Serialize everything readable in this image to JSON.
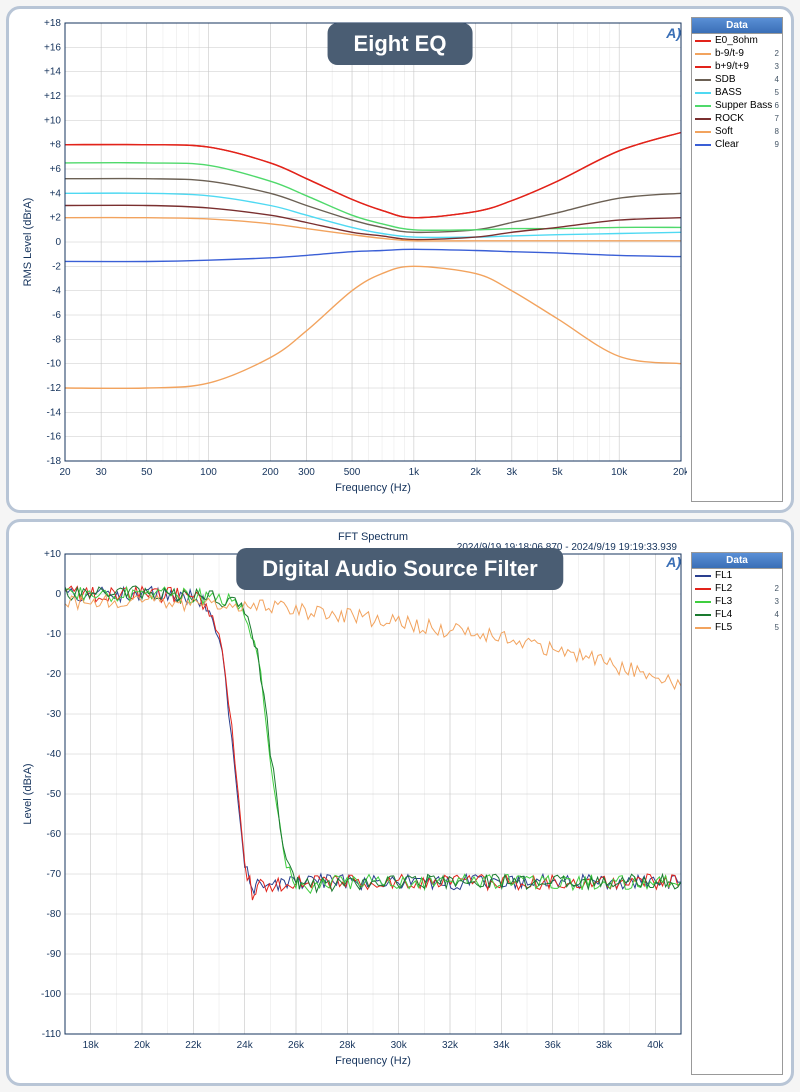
{
  "page_bg": "#f5f5f5",
  "panel_border": "#b8c5d6",
  "pill_bg": "#4a5d73",
  "pill_fg": "#ffffff",
  "grid_major": "#c8c8c8",
  "grid_minor": "#e6e6e6",
  "axis_color": "#15335c",
  "legend_header": "Data",
  "chart1": {
    "title": "Eight EQ",
    "type": "line",
    "x_axis_title": "Frequency (Hz)",
    "y_axis_title": "RMS Level (dBrA)",
    "x_scale": "log",
    "xlim": [
      20,
      20000
    ],
    "ylim": [
      -18,
      18
    ],
    "y_tick_step": 2,
    "x_ticks": [
      20,
      30,
      50,
      100,
      200,
      300,
      500,
      1000,
      2000,
      3000,
      5000,
      10000,
      20000
    ],
    "x_tick_labels": [
      "20",
      "30",
      "50",
      "100",
      "200",
      "300",
      "500",
      "1k",
      "2k",
      "3k",
      "5k",
      "10k",
      "20k"
    ],
    "background": "#ffffff",
    "series": [
      {
        "name": "E0_8ohm",
        "color": "#e2231a",
        "idx": "",
        "x": [
          20,
          50,
          100,
          200,
          300,
          500,
          700,
          1000,
          2000,
          3000,
          5000,
          10000,
          20000
        ],
        "y": [
          8,
          8,
          7.8,
          6.5,
          5.2,
          3.5,
          2.6,
          2,
          2.5,
          3.4,
          5,
          7.5,
          9
        ]
      },
      {
        "name": "b-9/t-9",
        "color": "#f2a35e",
        "idx": "2",
        "x": [
          20,
          50,
          100,
          200,
          300,
          500,
          700,
          1000,
          2000,
          3000,
          5000,
          10000,
          20000
        ],
        "y": [
          -12,
          -12,
          -11.6,
          -9.5,
          -7.3,
          -4,
          -2.6,
          -2,
          -2.6,
          -4,
          -6.3,
          -9.4,
          -10
        ]
      },
      {
        "name": "b+9/t+9",
        "color": "#e2231a",
        "idx": "3",
        "x": [
          20,
          50,
          100,
          200,
          300,
          500,
          700,
          1000,
          2000,
          3000,
          5000,
          10000,
          20000
        ],
        "y": [
          8,
          8,
          7.8,
          6.5,
          5.2,
          3.5,
          2.6,
          2,
          2.5,
          3.4,
          5,
          7.5,
          9
        ]
      },
      {
        "name": "SDB",
        "color": "#6b6054",
        "idx": "4",
        "x": [
          20,
          50,
          100,
          200,
          300,
          500,
          700,
          1000,
          2000,
          3000,
          5000,
          10000,
          20000
        ],
        "y": [
          5.2,
          5.2,
          5,
          4,
          3,
          1.8,
          1.2,
          0.8,
          1,
          1.6,
          2.4,
          3.6,
          4
        ]
      },
      {
        "name": "BASS",
        "color": "#4fd9f2",
        "idx": "5",
        "x": [
          20,
          50,
          100,
          200,
          300,
          500,
          700,
          1000,
          2000,
          3000,
          5000,
          10000,
          20000
        ],
        "y": [
          4,
          4,
          3.8,
          3,
          2.2,
          1.2,
          0.7,
          0.4,
          0.4,
          0.5,
          0.6,
          0.7,
          0.8
        ]
      },
      {
        "name": "Supper Bass",
        "color": "#4fd96b",
        "idx": "6",
        "x": [
          20,
          50,
          100,
          200,
          300,
          500,
          700,
          1000,
          2000,
          3000,
          5000,
          10000,
          20000
        ],
        "y": [
          6.5,
          6.5,
          6.3,
          5,
          3.8,
          2.2,
          1.5,
          1,
          1,
          1.1,
          1.1,
          1.2,
          1.2
        ]
      },
      {
        "name": "ROCK",
        "color": "#7a2f2f",
        "idx": "7",
        "x": [
          20,
          50,
          100,
          200,
          300,
          500,
          700,
          1000,
          2000,
          3000,
          5000,
          10000,
          20000
        ],
        "y": [
          3,
          3,
          2.8,
          2.2,
          1.6,
          0.8,
          0.5,
          0.2,
          0.4,
          0.8,
          1.2,
          1.8,
          2
        ]
      },
      {
        "name": "Soft",
        "color": "#f2a35e",
        "idx": "8",
        "x": [
          20,
          50,
          100,
          200,
          300,
          500,
          700,
          1000,
          2000,
          3000,
          5000,
          10000,
          20000
        ],
        "y": [
          2,
          2,
          1.9,
          1.5,
          1.1,
          0.6,
          0.3,
          0.1,
          0.1,
          0.1,
          0.1,
          0.1,
          0.1
        ]
      },
      {
        "name": "Clear",
        "color": "#3a5fd6",
        "idx": "9",
        "x": [
          20,
          50,
          100,
          200,
          300,
          500,
          700,
          1000,
          2000,
          3000,
          5000,
          10000,
          20000
        ],
        "y": [
          -1.6,
          -1.6,
          -1.5,
          -1.3,
          -1.1,
          -0.8,
          -0.7,
          -0.6,
          -0.7,
          -0.8,
          -0.9,
          -1.1,
          -1.2
        ]
      }
    ]
  },
  "chart2": {
    "title": "Digital Audio Source Filter",
    "subtitle": "FFT Spectrum",
    "timestamp_left": "2024/9/19 19:18:06.870 -",
    "timestamp_right": "2024/9/19 19:19:33.939",
    "type": "line",
    "x_axis_title": "Frequency (Hz)",
    "y_axis_title": "Level (dBrA)",
    "x_scale": "linear",
    "xlim": [
      17000,
      41000
    ],
    "ylim": [
      -110,
      10
    ],
    "y_tick_step": 10,
    "x_ticks": [
      18000,
      20000,
      22000,
      24000,
      26000,
      28000,
      30000,
      32000,
      34000,
      36000,
      38000,
      40000
    ],
    "x_tick_labels": [
      "18k",
      "20k",
      "22k",
      "24k",
      "26k",
      "28k",
      "30k",
      "32k",
      "34k",
      "36k",
      "38k",
      "40k"
    ],
    "background": "#ffffff",
    "noise_amp": 2.0,
    "series": [
      {
        "name": "FL1",
        "color": "#2a3f8f",
        "idx": "",
        "x": [
          17000,
          20000,
          21000,
          22000,
          22500,
          23000,
          23500,
          24000,
          24300,
          24500,
          26000,
          30000,
          41000
        ],
        "y": [
          0,
          0,
          -0.3,
          -1,
          -3,
          -10,
          -35,
          -68,
          -74,
          -73,
          -72,
          -72,
          -72
        ]
      },
      {
        "name": "FL2",
        "color": "#e2231a",
        "idx": "2",
        "x": [
          17000,
          20000,
          21000,
          22000,
          22500,
          23000,
          23500,
          24000,
          24300,
          24500,
          26000,
          30000,
          41000
        ],
        "y": [
          0,
          0,
          -0.2,
          -0.8,
          -2.6,
          -9,
          -34,
          -67,
          -75,
          -73,
          -72,
          -72,
          -72
        ]
      },
      {
        "name": "FL3",
        "color": "#3fce3f",
        "idx": "3",
        "x": [
          17000,
          20000,
          21000,
          22000,
          23000,
          23500,
          24000,
          24500,
          25000,
          25500,
          26000,
          26200,
          28000,
          41000
        ],
        "y": [
          0,
          0,
          -0.2,
          -0.5,
          -1.2,
          -2,
          -5,
          -15,
          -40,
          -65,
          -72,
          -73,
          -72,
          -72
        ]
      },
      {
        "name": "FL4",
        "color": "#1a7a2f",
        "idx": "4",
        "x": [
          17000,
          20000,
          21000,
          22000,
          23000,
          23500,
          24000,
          24500,
          25000,
          25500,
          26000,
          26200,
          28000,
          41000
        ],
        "y": [
          0,
          0,
          -0.2,
          -0.5,
          -1.1,
          -1.9,
          -4.8,
          -14,
          -39,
          -64,
          -72,
          -73,
          -72,
          -72
        ]
      },
      {
        "name": "FL5",
        "color": "#f2a35e",
        "idx": "5",
        "x": [
          17000,
          18000,
          20000,
          22000,
          24000,
          26000,
          28000,
          30000,
          32000,
          34000,
          36000,
          38000,
          40000,
          41000
        ],
        "y": [
          -2,
          -2,
          -2.2,
          -2.5,
          -3,
          -4,
          -5.5,
          -7,
          -9,
          -11,
          -14,
          -17,
          -21,
          -23
        ]
      }
    ]
  }
}
